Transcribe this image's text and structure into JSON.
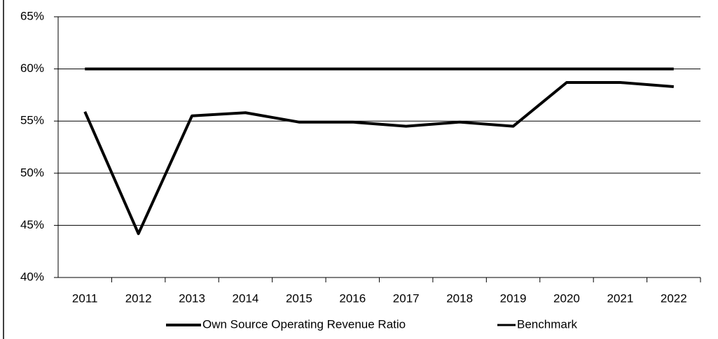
{
  "chart_data": {
    "type": "line",
    "categories": [
      "2011",
      "2012",
      "2013",
      "2014",
      "2015",
      "2016",
      "2017",
      "2018",
      "2019",
      "2020",
      "2021",
      "2022"
    ],
    "series": [
      {
        "name": "Own Source Operating Revenue Ratio",
        "color": "#000000",
        "values": [
          55.9,
          44.2,
          55.5,
          55.8,
          54.9,
          54.9,
          54.5,
          54.9,
          54.5,
          58.7,
          58.7,
          58.3
        ]
      },
      {
        "name": "Benchmark",
        "color": "#000000",
        "values": [
          60,
          60,
          60,
          60,
          60,
          60,
          60,
          60,
          60,
          60,
          60,
          60
        ]
      }
    ],
    "ylim": [
      40,
      65
    ],
    "yticks": [
      {
        "value": 40,
        "label": "40%"
      },
      {
        "value": 45,
        "label": "45%"
      },
      {
        "value": 50,
        "label": "50%"
      },
      {
        "value": 55,
        "label": "55%"
      },
      {
        "value": 60,
        "label": "60%"
      },
      {
        "value": 65,
        "label": "65%"
      }
    ],
    "grid": true,
    "legend": "bottom"
  }
}
